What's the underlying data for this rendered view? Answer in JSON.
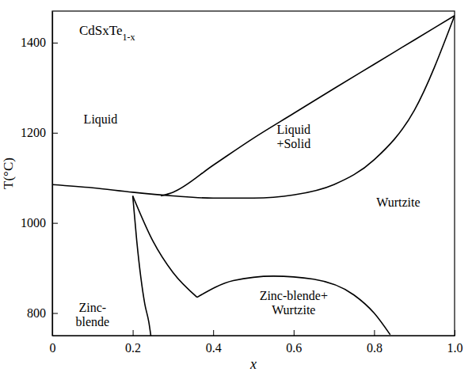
{
  "chart_data": {
    "type": "line",
    "title": "CdSxTe1-x",
    "x_label": "x",
    "y_label": "T(°C)",
    "xlim": [
      0,
      1
    ],
    "ylim": [
      750,
      1470
    ],
    "xticks": [
      0,
      0.2,
      0.4,
      0.6,
      0.8,
      {
        "value": 1,
        "label": "1.0"
      }
    ],
    "yticks": [
      800,
      1000,
      1200,
      1400
    ],
    "grid": false,
    "series": [
      {
        "color": "#000000",
        "x": [
          0.27,
          0.3,
          0.4,
          0.5,
          0.6,
          0.7,
          0.8,
          0.9,
          1.0
        ],
        "values": [
          1060,
          1068,
          1128,
          1188,
          1243,
          1298,
          1352,
          1406,
          1460
        ]
      },
      {
        "color": "#000000",
        "x": [
          0,
          0.1,
          0.2,
          0.3,
          0.4,
          0.5,
          0.6,
          0.7,
          0.8,
          0.9,
          1.0
        ],
        "values": [
          1085,
          1078,
          1068,
          1060,
          1055,
          1055,
          1062,
          1085,
          1140,
          1250,
          1460
        ]
      },
      {
        "color": "#000000",
        "x": [
          0.2,
          0.21,
          0.22,
          0.23,
          0.24,
          0.245
        ],
        "values": [
          1060,
          960,
          880,
          820,
          780,
          750
        ]
      },
      {
        "color": "#000000",
        "x": [
          0.2,
          0.25,
          0.3,
          0.36
        ],
        "values": [
          1060,
          960,
          890,
          835
        ]
      },
      {
        "color": "#000000",
        "x": [
          0.36,
          0.45,
          0.55,
          0.65,
          0.75,
          0.8,
          0.84
        ],
        "values": [
          835,
          872,
          882,
          875,
          840,
          800,
          752
        ]
      }
    ],
    "annotations": [
      {
        "text": "Liquid",
        "x": 0.12,
        "y": 1230
      },
      {
        "text": "Liquid\n+Solid",
        "x": 0.6,
        "y": 1190
      },
      {
        "text": "Wurtzite",
        "x": 0.86,
        "y": 1045
      },
      {
        "text": "Zinc-\nblende",
        "x": 0.1,
        "y": 795
      },
      {
        "text": "Zinc-blende+\nWurtzite",
        "x": 0.6,
        "y": 822
      }
    ]
  }
}
